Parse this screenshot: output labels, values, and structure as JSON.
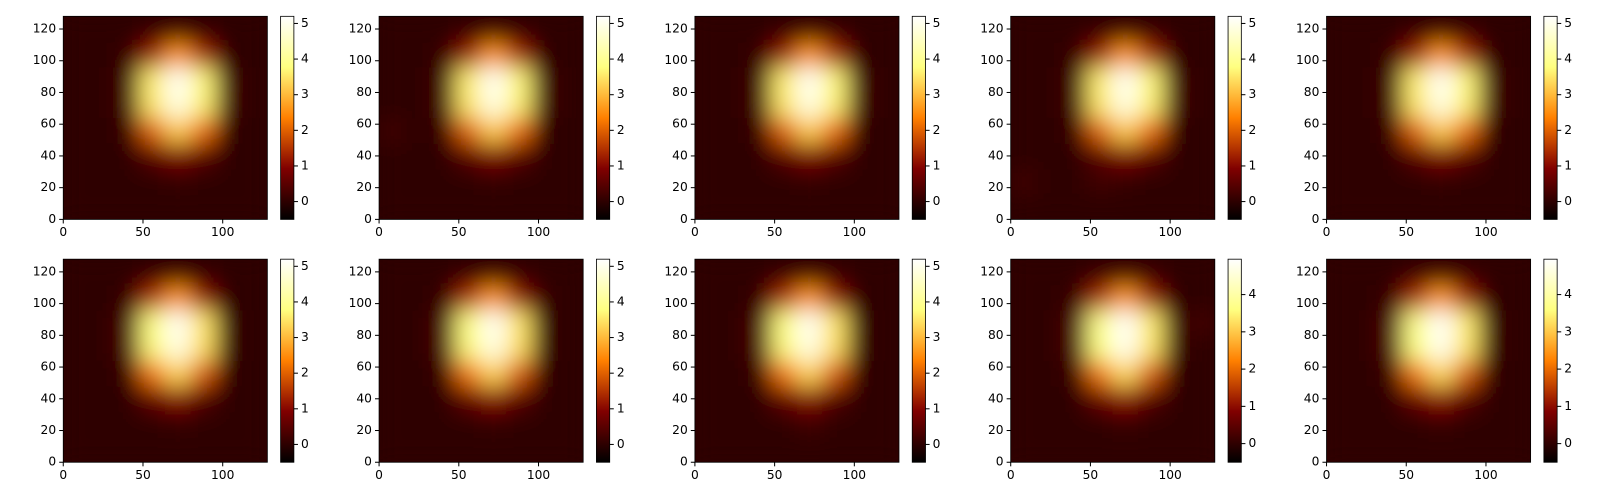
{
  "chart_data": [
    {
      "type": "heatmap",
      "colormap": "afmhot",
      "xlim": [
        0,
        128
      ],
      "ylim": [
        0,
        128
      ],
      "xticks": [
        0,
        50,
        100
      ],
      "yticks": [
        0,
        20,
        40,
        60,
        80,
        100,
        120
      ],
      "clim": [
        -0.5,
        5.2
      ],
      "cticks": [
        0,
        1,
        2,
        3,
        4,
        5
      ],
      "z": [
        [
          0,
          0,
          0,
          0,
          0,
          0,
          0,
          0
        ],
        [
          0,
          0,
          0,
          0,
          0.1,
          0,
          0,
          0
        ],
        [
          0,
          0,
          0,
          0.5,
          0.9,
          0.5,
          0,
          0
        ],
        [
          0,
          0,
          0.1,
          2,
          3.2,
          2.1,
          0,
          0
        ],
        [
          0,
          0,
          0.2,
          3.5,
          4.9,
          3.6,
          0.2,
          0
        ],
        [
          0,
          0,
          0.2,
          3.6,
          5.1,
          3.7,
          0.2,
          0
        ],
        [
          0,
          0,
          0.1,
          1.2,
          2.6,
          1.3,
          0,
          0
        ],
        [
          0,
          0,
          0,
          0.1,
          0.2,
          0.1,
          0,
          0
        ]
      ]
    },
    {
      "type": "heatmap",
      "colormap": "afmhot",
      "xlim": [
        0,
        128
      ],
      "ylim": [
        0,
        128
      ],
      "xticks": [
        0,
        50,
        100
      ],
      "yticks": [
        0,
        20,
        40,
        60,
        80,
        100,
        120
      ],
      "clim": [
        -0.5,
        5.2
      ],
      "cticks": [
        0,
        1,
        2,
        3,
        4,
        5
      ],
      "z": [
        [
          0,
          0,
          0,
          0,
          0,
          0,
          0,
          0
        ],
        [
          0,
          0,
          0,
          0,
          0.1,
          0,
          0,
          0
        ],
        [
          0,
          0,
          0,
          0.5,
          0.9,
          0.5,
          0,
          0
        ],
        [
          0.2,
          0,
          0.1,
          2,
          3.2,
          2.1,
          0,
          0
        ],
        [
          0,
          0,
          0.2,
          3.5,
          4.9,
          3.6,
          0.2,
          0
        ],
        [
          0,
          0,
          0.2,
          3.6,
          5.1,
          3.7,
          0.2,
          0
        ],
        [
          0,
          0,
          0.1,
          1.2,
          2.6,
          1.3,
          0,
          0
        ],
        [
          0,
          0,
          0,
          0.1,
          0.2,
          0.1,
          0,
          0
        ]
      ]
    },
    {
      "type": "heatmap",
      "colormap": "afmhot",
      "xlim": [
        0,
        128
      ],
      "ylim": [
        0,
        128
      ],
      "xticks": [
        0,
        50,
        100
      ],
      "yticks": [
        0,
        20,
        40,
        60,
        80,
        100,
        120
      ],
      "clim": [
        -0.5,
        5.2
      ],
      "cticks": [
        0,
        1,
        2,
        3,
        4,
        5
      ],
      "z": [
        [
          0,
          0,
          0,
          0,
          0,
          0,
          0,
          0
        ],
        [
          0,
          0,
          0,
          0,
          0.1,
          0,
          0,
          0
        ],
        [
          0,
          0,
          0,
          0.5,
          0.9,
          0.5,
          0,
          0
        ],
        [
          0,
          0,
          0.1,
          2,
          3.2,
          2.1,
          0,
          0
        ],
        [
          0,
          0,
          0.2,
          3.5,
          4.9,
          3.6,
          0.2,
          0
        ],
        [
          0,
          0,
          0.2,
          3.6,
          5.1,
          3.7,
          0.2,
          0
        ],
        [
          0,
          0,
          0.1,
          1.2,
          2.6,
          1.3,
          0,
          0
        ],
        [
          0,
          0,
          0,
          0.1,
          0.2,
          0.1,
          0,
          0
        ]
      ]
    },
    {
      "type": "heatmap",
      "colormap": "afmhot",
      "xlim": [
        0,
        128
      ],
      "ylim": [
        0,
        128
      ],
      "xticks": [
        0,
        50,
        100
      ],
      "yticks": [
        0,
        20,
        40,
        60,
        80,
        100,
        120
      ],
      "clim": [
        -0.5,
        5.2
      ],
      "cticks": [
        0,
        1,
        2,
        3,
        4,
        5
      ],
      "z": [
        [
          0,
          0,
          0,
          0,
          0,
          0,
          0,
          0
        ],
        [
          0.2,
          0,
          0,
          0.2,
          0.1,
          0,
          0,
          0
        ],
        [
          0,
          0,
          0,
          0.5,
          0.9,
          0.5,
          0,
          0
        ],
        [
          0,
          0,
          0.1,
          2,
          3.2,
          2.1,
          0,
          0
        ],
        [
          0,
          0,
          0.2,
          3.5,
          4.9,
          3.6,
          0.2,
          0
        ],
        [
          0,
          0,
          0.2,
          3.6,
          5.1,
          3.7,
          0.2,
          0
        ],
        [
          0,
          0,
          0.1,
          1.2,
          2.6,
          1.3,
          0,
          0
        ],
        [
          0,
          0,
          0,
          0.1,
          0.2,
          0.1,
          0,
          0
        ]
      ]
    },
    {
      "type": "heatmap",
      "colormap": "afmhot",
      "xlim": [
        0,
        128
      ],
      "ylim": [
        0,
        128
      ],
      "xticks": [
        0,
        50,
        100
      ],
      "yticks": [
        0,
        20,
        40,
        60,
        80,
        100,
        120
      ],
      "clim": [
        -0.5,
        5.2
      ],
      "cticks": [
        0,
        1,
        2,
        3,
        4,
        5
      ],
      "z": [
        [
          0,
          0,
          0,
          0,
          0,
          0,
          0,
          0
        ],
        [
          0,
          0,
          0,
          0,
          0.1,
          0,
          0,
          0
        ],
        [
          0,
          0,
          0,
          0.5,
          0.9,
          0.5,
          0,
          0
        ],
        [
          0,
          0,
          0.1,
          2,
          3.2,
          2.1,
          0,
          0
        ],
        [
          0,
          0,
          0.2,
          3.5,
          4.9,
          3.6,
          0.2,
          0
        ],
        [
          0,
          0,
          0.2,
          3.6,
          5.1,
          3.7,
          0.2,
          0
        ],
        [
          0,
          0,
          0.1,
          1.2,
          2.6,
          1.3,
          0,
          0
        ],
        [
          0,
          0,
          0,
          0.1,
          0.2,
          0.1,
          0,
          0
        ]
      ]
    },
    {
      "type": "heatmap",
      "colormap": "afmhot",
      "xlim": [
        0,
        128
      ],
      "ylim": [
        0,
        128
      ],
      "xticks": [
        0,
        50,
        100
      ],
      "yticks": [
        0,
        20,
        40,
        60,
        80,
        100,
        120
      ],
      "clim": [
        -0.5,
        5.2
      ],
      "cticks": [
        0,
        1,
        2,
        3,
        4,
        5
      ],
      "z": [
        [
          0,
          0,
          0,
          0,
          0,
          0,
          0,
          0
        ],
        [
          0,
          0,
          0,
          0,
          0.1,
          0,
          0,
          0
        ],
        [
          0,
          0,
          0,
          0.6,
          1,
          0.4,
          0,
          0
        ],
        [
          0,
          0,
          0.1,
          2.2,
          3.3,
          1.9,
          0,
          0
        ],
        [
          0,
          0,
          0.3,
          3.7,
          4.9,
          3.4,
          0.1,
          0
        ],
        [
          0,
          0,
          0.3,
          3.8,
          5.1,
          3.5,
          0.1,
          0
        ],
        [
          0,
          0,
          0.1,
          1.4,
          2.6,
          1.1,
          0,
          0
        ],
        [
          0,
          0,
          0,
          0.1,
          0.2,
          0.1,
          0,
          0
        ]
      ]
    },
    {
      "type": "heatmap",
      "colormap": "afmhot",
      "xlim": [
        0,
        128
      ],
      "ylim": [
        0,
        128
      ],
      "xticks": [
        0,
        50,
        100
      ],
      "yticks": [
        0,
        20,
        40,
        60,
        80,
        100,
        120
      ],
      "clim": [
        -0.5,
        5.2
      ],
      "cticks": [
        0,
        1,
        2,
        3,
        4,
        5
      ],
      "z": [
        [
          0,
          0,
          0,
          0,
          0,
          0,
          0,
          0
        ],
        [
          0,
          0,
          0,
          0,
          0.1,
          0,
          0,
          0
        ],
        [
          0,
          0,
          0,
          0.6,
          1,
          0.5,
          0,
          0
        ],
        [
          0,
          0,
          0.1,
          2.2,
          3.3,
          1.9,
          0,
          0
        ],
        [
          0,
          0,
          0.3,
          3.7,
          4.9,
          3.4,
          0.1,
          0
        ],
        [
          0,
          0,
          0.3,
          3.8,
          5.1,
          3.5,
          0.1,
          0
        ],
        [
          0,
          0,
          0.1,
          1.4,
          2.6,
          1.1,
          0.1,
          0
        ],
        [
          0,
          0,
          0,
          0.1,
          0.2,
          0.1,
          0,
          0
        ]
      ]
    },
    {
      "type": "heatmap",
      "colormap": "afmhot",
      "xlim": [
        0,
        128
      ],
      "ylim": [
        0,
        128
      ],
      "xticks": [
        0,
        50,
        100
      ],
      "yticks": [
        0,
        20,
        40,
        60,
        80,
        100,
        120
      ],
      "clim": [
        -0.5,
        5.2
      ],
      "cticks": [
        0,
        1,
        2,
        3,
        4,
        5
      ],
      "z": [
        [
          0,
          0,
          0,
          0,
          0,
          0,
          0,
          0
        ],
        [
          0,
          0,
          0,
          0,
          0.2,
          0,
          0,
          0
        ],
        [
          0,
          0,
          0,
          0.6,
          1,
          0.4,
          0,
          0
        ],
        [
          0,
          0,
          0.1,
          2.2,
          3.3,
          1.9,
          0,
          0
        ],
        [
          0,
          0,
          0.3,
          3.7,
          4.9,
          3.4,
          0.1,
          0
        ],
        [
          0,
          0,
          0.3,
          3.8,
          5.1,
          3.5,
          0.1,
          0
        ],
        [
          0,
          0,
          0.1,
          1.4,
          2.6,
          1.1,
          0,
          0
        ],
        [
          0,
          0,
          0,
          0.1,
          0.2,
          0.1,
          0,
          0
        ]
      ]
    },
    {
      "type": "heatmap",
      "colormap": "afmhot",
      "xlim": [
        0,
        128
      ],
      "ylim": [
        0,
        128
      ],
      "xticks": [
        0,
        50,
        100
      ],
      "yticks": [
        0,
        20,
        40,
        60,
        80,
        100,
        120
      ],
      "clim": [
        -0.5,
        4.95
      ],
      "cticks": [
        0,
        1,
        2,
        3,
        4
      ],
      "z": [
        [
          0,
          0,
          0,
          0,
          0,
          0,
          0,
          0
        ],
        [
          0,
          0,
          0,
          0,
          0.1,
          0,
          0,
          0
        ],
        [
          0,
          0,
          0,
          0.6,
          1,
          0.4,
          0,
          0
        ],
        [
          0,
          0,
          0.1,
          2.1,
          3.2,
          1.8,
          0,
          0
        ],
        [
          0,
          0,
          0.3,
          3.6,
          4.8,
          3.3,
          0.1,
          0
        ],
        [
          0,
          0,
          0.3,
          3.7,
          4.9,
          3.4,
          0.1,
          0.2
        ],
        [
          0,
          0,
          0.1,
          1.3,
          2.5,
          1.1,
          0,
          0
        ],
        [
          0,
          0,
          0,
          0.1,
          0.2,
          0.1,
          0,
          0
        ]
      ]
    },
    {
      "type": "heatmap",
      "colormap": "afmhot",
      "xlim": [
        0,
        128
      ],
      "ylim": [
        0,
        128
      ],
      "xticks": [
        0,
        50,
        100
      ],
      "yticks": [
        0,
        20,
        40,
        60,
        80,
        100,
        120
      ],
      "clim": [
        -0.5,
        4.95
      ],
      "cticks": [
        0,
        1,
        2,
        3,
        4
      ],
      "z": [
        [
          0,
          0,
          0,
          0,
          0,
          0,
          0,
          0
        ],
        [
          0,
          0,
          0,
          0,
          0.1,
          0,
          0,
          0
        ],
        [
          0,
          0,
          0,
          0.6,
          1,
          0.4,
          0,
          0
        ],
        [
          0,
          0,
          0.1,
          2.1,
          3.2,
          1.8,
          0,
          0
        ],
        [
          0,
          0,
          0.3,
          3.6,
          4.8,
          3.3,
          0.1,
          0
        ],
        [
          0,
          0,
          0.3,
          3.7,
          4.9,
          3.4,
          0.1,
          0
        ],
        [
          0,
          0,
          0.1,
          1.3,
          2.5,
          1.1,
          0,
          0
        ],
        [
          0,
          0,
          0,
          0.1,
          0.2,
          0.1,
          0,
          0
        ]
      ]
    }
  ]
}
